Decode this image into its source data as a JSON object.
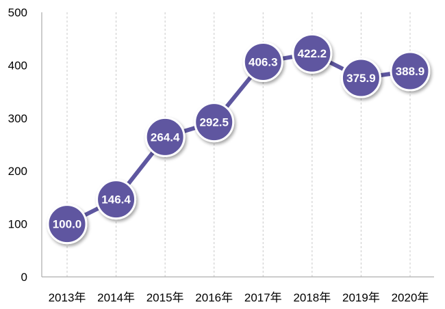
{
  "chart_data": {
    "type": "line",
    "categories": [
      "2013年",
      "2014年",
      "2015年",
      "2016年",
      "2017年",
      "2018年",
      "2019年",
      "2020年"
    ],
    "values": [
      100.0,
      146.4,
      264.4,
      292.5,
      406.3,
      422.2,
      375.9,
      388.9
    ],
    "data_labels": [
      "100.0",
      "146.4",
      "264.4",
      "292.5",
      "406.3",
      "422.2",
      "375.9",
      "388.9"
    ],
    "y_ticks": [
      "0",
      "100",
      "200",
      "300",
      "400",
      "500"
    ],
    "ylim": [
      0,
      500
    ],
    "grid": "vertical dashed at categories",
    "legend": "none",
    "colors": {
      "line": "#5e57a0",
      "marker_fill": "#5e57a0",
      "marker_stroke": "#ffffff",
      "axis": "#9a9a9a",
      "grid": "#c8c8c8"
    }
  }
}
